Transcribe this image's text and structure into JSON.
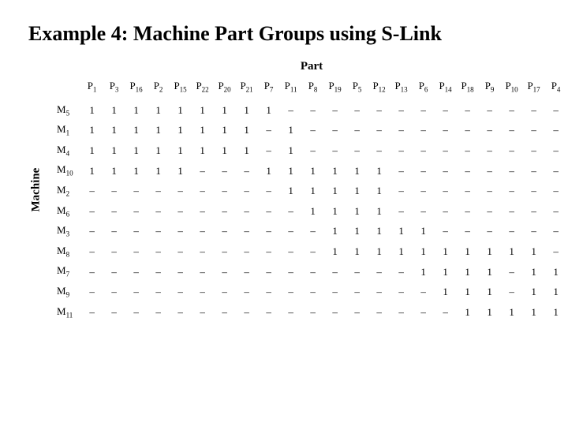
{
  "title": "Example 4: Machine Part Groups using S-Link",
  "axis_top": "Part",
  "axis_left": "Machine",
  "dash": "–",
  "columns": [
    {
      "p": "P",
      "s": "1"
    },
    {
      "p": "P",
      "s": "3"
    },
    {
      "p": "P",
      "s": "16"
    },
    {
      "p": "P",
      "s": "2"
    },
    {
      "p": "P",
      "s": "15"
    },
    {
      "p": "P",
      "s": "22"
    },
    {
      "p": "P",
      "s": "20"
    },
    {
      "p": "P",
      "s": "21"
    },
    {
      "p": "P",
      "s": "7"
    },
    {
      "p": "P",
      "s": "11"
    },
    {
      "p": "P",
      "s": "8"
    },
    {
      "p": "P",
      "s": "19"
    },
    {
      "p": "P",
      "s": "5"
    },
    {
      "p": "P",
      "s": "12"
    },
    {
      "p": "P",
      "s": "13"
    },
    {
      "p": "P",
      "s": "6"
    },
    {
      "p": "P",
      "s": "14"
    },
    {
      "p": "P",
      "s": "18"
    },
    {
      "p": "P",
      "s": "9"
    },
    {
      "p": "P",
      "s": "10"
    },
    {
      "p": "P",
      "s": "17"
    },
    {
      "p": "P",
      "s": "4"
    }
  ],
  "rows": [
    {
      "p": "M",
      "s": "5",
      "cells": [
        "1",
        "1",
        "1",
        "1",
        "1",
        "1",
        "1",
        "1",
        "1",
        "-",
        "-",
        "-",
        "-",
        "-",
        "-",
        "-",
        "-",
        "-",
        "-",
        "-",
        "-",
        "-"
      ]
    },
    {
      "p": "M",
      "s": "1",
      "cells": [
        "1",
        "1",
        "1",
        "1",
        "1",
        "1",
        "1",
        "1",
        "-",
        "1",
        "-",
        "-",
        "-",
        "-",
        "-",
        "-",
        "-",
        "-",
        "-",
        "-",
        "-",
        "-"
      ]
    },
    {
      "p": "M",
      "s": "4",
      "cells": [
        "1",
        "1",
        "1",
        "1",
        "1",
        "1",
        "1",
        "1",
        "-",
        "1",
        "-",
        "-",
        "-",
        "-",
        "-",
        "-",
        "-",
        "-",
        "-",
        "-",
        "-",
        "-"
      ]
    },
    {
      "p": "M",
      "s": "10",
      "cells": [
        "1",
        "1",
        "1",
        "1",
        "1",
        "-",
        "-",
        "-",
        "1",
        "1",
        "1",
        "1",
        "1",
        "1",
        "-",
        "-",
        "-",
        "-",
        "-",
        "-",
        "-",
        "-"
      ]
    },
    {
      "p": "M",
      "s": "2",
      "cells": [
        "-",
        "-",
        "-",
        "-",
        "-",
        "-",
        "-",
        "-",
        "-",
        "1",
        "1",
        "1",
        "1",
        "1",
        "-",
        "-",
        "-",
        "-",
        "-",
        "-",
        "-",
        "-"
      ]
    },
    {
      "p": "M",
      "s": "6",
      "cells": [
        "-",
        "-",
        "-",
        "-",
        "-",
        "-",
        "-",
        "-",
        "-",
        "-",
        "1",
        "1",
        "1",
        "1",
        "-",
        "-",
        "-",
        "-",
        "-",
        "-",
        "-",
        "-"
      ]
    },
    {
      "p": "M",
      "s": "3",
      "cells": [
        "-",
        "-",
        "-",
        "-",
        "-",
        "-",
        "-",
        "-",
        "-",
        "-",
        "-",
        "1",
        "1",
        "1",
        "1",
        "1",
        "-",
        "-",
        "-",
        "-",
        "-",
        "-"
      ]
    },
    {
      "p": "M",
      "s": "8",
      "cells": [
        "-",
        "-",
        "-",
        "-",
        "-",
        "-",
        "-",
        "-",
        "-",
        "-",
        "-",
        "1",
        "1",
        "1",
        "1",
        "1",
        "1",
        "1",
        "1",
        "1",
        "1",
        "-"
      ]
    },
    {
      "p": "M",
      "s": "7",
      "cells": [
        "-",
        "-",
        "-",
        "-",
        "-",
        "-",
        "-",
        "-",
        "-",
        "-",
        "-",
        "-",
        "-",
        "-",
        "-",
        "1",
        "1",
        "1",
        "1",
        "-",
        "1",
        "1"
      ]
    },
    {
      "p": "M",
      "s": "9",
      "cells": [
        "-",
        "-",
        "-",
        "-",
        "-",
        "-",
        "-",
        "-",
        "-",
        "-",
        "-",
        "-",
        "-",
        "-",
        "-",
        "-",
        "1",
        "1",
        "1",
        "-",
        "1",
        "1"
      ]
    },
    {
      "p": "M",
      "s": "11",
      "cells": [
        "-",
        "-",
        "-",
        "-",
        "-",
        "-",
        "-",
        "-",
        "-",
        "-",
        "-",
        "-",
        "-",
        "-",
        "-",
        "-",
        "-",
        "1",
        "1",
        "1",
        "1",
        "1"
      ]
    }
  ],
  "style": {
    "bg": "#ffffff",
    "fg": "#000000",
    "title_fontsize": 26,
    "body_fontsize": 13,
    "sub_fontsize": 9
  }
}
